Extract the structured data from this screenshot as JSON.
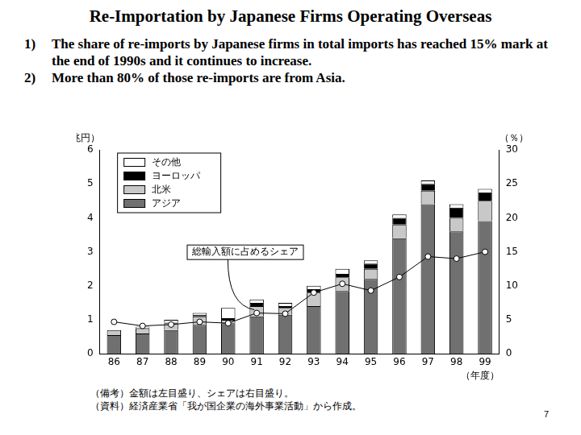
{
  "title": "Re-Importation by Japanese Firms Operating Overseas",
  "bullets": [
    {
      "marker": "1)",
      "text": "The share of re-imports by Japanese firms in total imports has reached 15% mark at the end of 1990s and it continues to increase."
    },
    {
      "marker": "2)",
      "text": "More than 80% of those re-imports are from Asia."
    }
  ],
  "chart_data": {
    "type": "bar",
    "stacked": true,
    "y_label": "（兆円）",
    "y2_label": "（％）",
    "x_label": "（年度）",
    "categories": [
      "86",
      "87",
      "88",
      "89",
      "90",
      "91",
      "92",
      "93",
      "94",
      "95",
      "96",
      "97",
      "98",
      "99"
    ],
    "series": [
      {
        "name": "アジア",
        "color": "#707070",
        "values": [
          0.55,
          0.6,
          0.7,
          0.85,
          0.9,
          1.1,
          1.15,
          1.4,
          1.85,
          2.2,
          3.4,
          4.4,
          3.6,
          3.9
        ]
      },
      {
        "name": "北米",
        "color": "#c8c8c8",
        "values": [
          0.15,
          0.15,
          0.2,
          0.25,
          0.1,
          0.3,
          0.2,
          0.4,
          0.4,
          0.3,
          0.4,
          0.4,
          0.4,
          0.6
        ]
      },
      {
        "name": "ヨーロッパ",
        "color": "#000000",
        "values": [
          0.0,
          0.02,
          0.02,
          0.05,
          0.05,
          0.1,
          0.05,
          0.1,
          0.1,
          0.15,
          0.2,
          0.2,
          0.3,
          0.25
        ]
      },
      {
        "name": "その他",
        "color": "#ffffff",
        "values": [
          0.0,
          0.03,
          0.08,
          0.05,
          0.3,
          0.1,
          0.1,
          0.1,
          0.15,
          0.1,
          0.1,
          0.1,
          0.1,
          0.1
        ]
      },
      {
        "name": "総輸入額に占めるシェア",
        "type": "line",
        "axis": "y2",
        "color": "#000000",
        "marker": "circle",
        "values": [
          4.7,
          4.1,
          4.3,
          4.7,
          4.5,
          6.0,
          5.9,
          9.0,
          10.3,
          9.3,
          11.3,
          14.3,
          14.0,
          15.0
        ]
      }
    ],
    "ylim": [
      0,
      6
    ],
    "yticks": [
      0,
      1,
      2,
      3,
      4,
      5,
      6
    ],
    "y2lim": [
      0,
      30
    ],
    "y2ticks": [
      0,
      5,
      10,
      15,
      20,
      25,
      30
    ],
    "legend": "top-left",
    "grid": false
  },
  "notes": [
    "（備考）金額は左目盛り、シェアは右目盛り。",
    "（資料）経済産業省「我が国企業の海外事業活動」から作成。"
  ],
  "page_number": "7"
}
